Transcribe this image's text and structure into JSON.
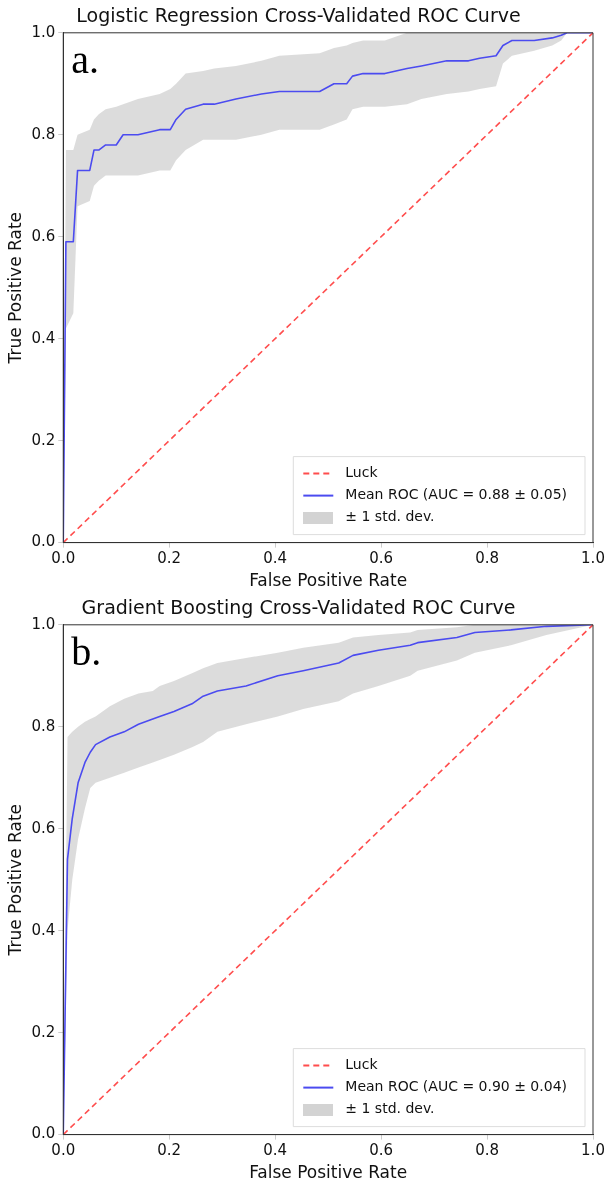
{
  "chart_data": [
    {
      "type": "line",
      "title": "Logistic Regression Cross-Validated ROC Curve",
      "xlabel": "False Positive Rate",
      "ylabel": "True Positive Rate",
      "annotations": [
        "a.",
        "± 1 std. dev."
      ],
      "legend": "bottom right",
      "grid": false,
      "marker": "none",
      "xlim": [
        0,
        1
      ],
      "ylim": [
        0,
        1
      ],
      "xticks": [
        {
          "value": 0,
          "label": "0.0"
        },
        {
          "value": 0.2,
          "label": "0.2"
        },
        {
          "value": 0.4,
          "label": "0.4"
        },
        {
          "value": 0.6,
          "label": "0.6"
        },
        {
          "value": 0.8,
          "label": "0.8"
        },
        {
          "value": 1,
          "label": "1.0"
        }
      ],
      "yticks": [
        {
          "value": 0,
          "label": "0.0"
        },
        {
          "value": 0.2,
          "label": "0.2"
        },
        {
          "value": 0.4,
          "label": "0.4"
        },
        {
          "value": 0.6,
          "label": "0.6"
        },
        {
          "value": 0.8,
          "label": "0.8"
        },
        {
          "value": 1,
          "label": "1.0"
        }
      ],
      "series": [
        {
          "name": "Luck",
          "line_style": "dashed",
          "color": "#ff4d4d",
          "x": [
            0,
            1
          ],
          "values": [
            0,
            1
          ]
        },
        {
          "name": "Mean ROC (AUC = 0.88 ± 0.05)",
          "line_style": "solid",
          "color": "#4b4bf0",
          "x": [
            0,
            0.005,
            0.019,
            0.027,
            0.05,
            0.058,
            0.067,
            0.08,
            0.1,
            0.113,
            0.141,
            0.182,
            0.202,
            0.213,
            0.231,
            0.264,
            0.285,
            0.326,
            0.374,
            0.408,
            0.484,
            0.511,
            0.535,
            0.546,
            0.566,
            0.607,
            0.649,
            0.676,
            0.724,
            0.765,
            0.786,
            0.817,
            0.83,
            0.847,
            0.889,
            0.923,
            0.94,
            0.951,
            1
          ],
          "values": [
            0,
            0.59,
            0.59,
            0.73,
            0.73,
            0.77,
            0.77,
            0.78,
            0.78,
            0.8,
            0.8,
            0.81,
            0.81,
            0.83,
            0.85,
            0.86,
            0.86,
            0.87,
            0.88,
            0.885,
            0.885,
            0.9,
            0.9,
            0.915,
            0.92,
            0.92,
            0.93,
            0.935,
            0.945,
            0.945,
            0.95,
            0.955,
            0.975,
            0.985,
            0.985,
            0.99,
            0.995,
            1,
            1
          ],
          "lower": [
            0,
            0.42,
            0.45,
            0.66,
            0.67,
            0.7,
            0.71,
            0.72,
            0.72,
            0.72,
            0.72,
            0.73,
            0.73,
            0.75,
            0.77,
            0.79,
            0.79,
            0.79,
            0.8,
            0.81,
            0.81,
            0.82,
            0.83,
            0.85,
            0.855,
            0.855,
            0.86,
            0.87,
            0.88,
            0.885,
            0.89,
            0.895,
            0.94,
            0.955,
            0.965,
            0.975,
            0.985,
            1,
            1
          ],
          "upper": [
            0,
            0.77,
            0.77,
            0.8,
            0.81,
            0.83,
            0.84,
            0.85,
            0.855,
            0.86,
            0.87,
            0.88,
            0.89,
            0.9,
            0.92,
            0.925,
            0.93,
            0.935,
            0.945,
            0.955,
            0.96,
            0.97,
            0.975,
            0.98,
            0.985,
            0.985,
            1,
            1,
            1,
            1,
            1,
            1,
            1,
            1,
            1,
            1,
            1,
            1,
            1
          ]
        }
      ]
    },
    {
      "type": "line",
      "title": "Gradient Boosting Cross-Validated ROC Curve",
      "xlabel": "False Positive Rate",
      "ylabel": "True Positive Rate",
      "annotations": [
        "b.",
        "± 1 std. dev."
      ],
      "legend": "bottom right",
      "grid": false,
      "marker": "none",
      "xlim": [
        0,
        1
      ],
      "ylim": [
        0,
        1
      ],
      "xticks": [
        {
          "value": 0,
          "label": "0.0"
        },
        {
          "value": 0.2,
          "label": "0.2"
        },
        {
          "value": 0.4,
          "label": "0.4"
        },
        {
          "value": 0.6,
          "label": "0.6"
        },
        {
          "value": 0.8,
          "label": "0.8"
        },
        {
          "value": 1,
          "label": "1.0"
        }
      ],
      "yticks": [
        {
          "value": 0,
          "label": "0.0"
        },
        {
          "value": 0.2,
          "label": "0.2"
        },
        {
          "value": 0.4,
          "label": "0.4"
        },
        {
          "value": 0.6,
          "label": "0.6"
        },
        {
          "value": 0.8,
          "label": "0.8"
        },
        {
          "value": 1,
          "label": "1.0"
        }
      ],
      "series": [
        {
          "name": "Luck",
          "line_style": "dashed",
          "color": "#ff4d4d",
          "x": [
            0,
            1
          ],
          "values": [
            0,
            1
          ]
        },
        {
          "name": "Mean ROC (AUC = 0.90 ± 0.04)",
          "line_style": "solid",
          "color": "#4b4bf0",
          "x": [
            0,
            0.008,
            0.017,
            0.028,
            0.041,
            0.051,
            0.061,
            0.088,
            0.115,
            0.142,
            0.169,
            0.182,
            0.209,
            0.243,
            0.264,
            0.291,
            0.345,
            0.405,
            0.453,
            0.52,
            0.547,
            0.595,
            0.655,
            0.669,
            0.743,
            0.777,
            0.845,
            0.912,
            1
          ],
          "values": [
            0,
            0.54,
            0.62,
            0.69,
            0.73,
            0.75,
            0.765,
            0.78,
            0.79,
            0.805,
            0.815,
            0.82,
            0.83,
            0.845,
            0.86,
            0.87,
            0.88,
            0.9,
            0.91,
            0.925,
            0.94,
            0.95,
            0.96,
            0.965,
            0.975,
            0.985,
            0.99,
            0.997,
            1
          ],
          "lower": [
            0,
            0.4,
            0.5,
            0.58,
            0.64,
            0.68,
            0.69,
            0.7,
            0.71,
            0.72,
            0.73,
            0.735,
            0.745,
            0.76,
            0.77,
            0.79,
            0.805,
            0.82,
            0.835,
            0.85,
            0.865,
            0.88,
            0.9,
            0.91,
            0.93,
            0.945,
            0.96,
            0.98,
            1
          ],
          "upper": [
            0,
            0.78,
            0.79,
            0.8,
            0.81,
            0.815,
            0.82,
            0.84,
            0.855,
            0.865,
            0.87,
            0.88,
            0.89,
            0.905,
            0.915,
            0.925,
            0.935,
            0.945,
            0.955,
            0.965,
            0.975,
            0.98,
            0.985,
            0.99,
            0.995,
            1,
            1,
            1,
            1
          ]
        }
      ]
    }
  ]
}
